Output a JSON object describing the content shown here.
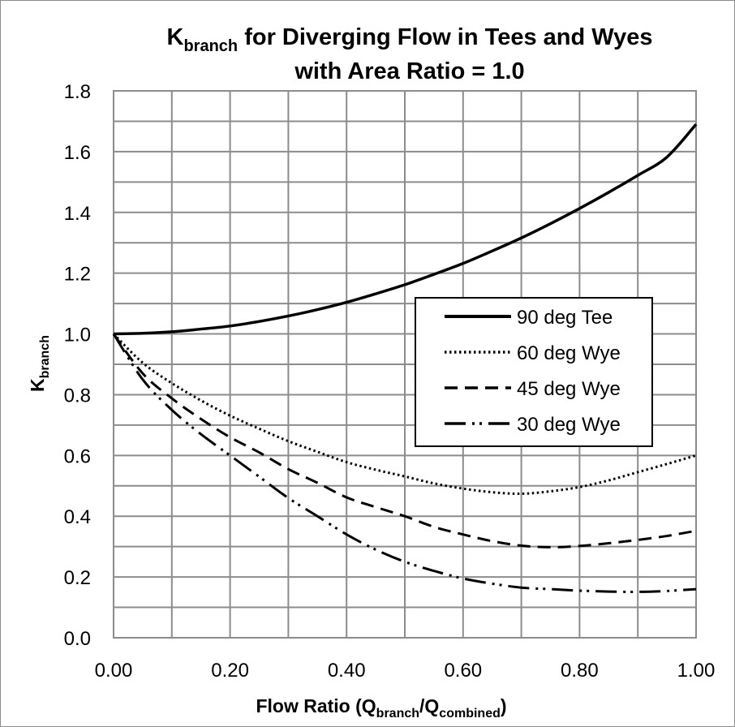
{
  "chart_data": {
    "type": "line",
    "title": {
      "line1_main": "K",
      "line1_sub": "branch",
      "line1_rest": " for Diverging Flow in Tees and Wyes",
      "line2": "with Area Ratio = 1.0"
    },
    "xlabel": {
      "pre": "Flow Ratio (Q",
      "sub1": "branch",
      "mid": "/Q",
      "sub2": "combined",
      "post": ")"
    },
    "ylabel": {
      "main": "K",
      "sub": "branch"
    },
    "xlim": [
      0,
      1
    ],
    "ylim": [
      0,
      1.8
    ],
    "x_ticks": [
      "0.00",
      "0.20",
      "0.40",
      "0.60",
      "0.80",
      "1.00"
    ],
    "y_ticks": [
      "0.0",
      "0.2",
      "0.4",
      "0.6",
      "0.8",
      "1.0",
      "1.2",
      "1.4",
      "1.6",
      "1.8"
    ],
    "grid": true,
    "grid_minor_x": 0.1,
    "grid_minor_y": 0.1,
    "legend_position": "right-middle",
    "x": [
      0.0,
      0.05,
      0.1,
      0.15,
      0.2,
      0.25,
      0.3,
      0.35,
      0.4,
      0.45,
      0.5,
      0.55,
      0.6,
      0.65,
      0.7,
      0.75,
      0.8,
      0.85,
      0.9,
      0.95,
      1.0
    ],
    "series": [
      {
        "name": "90 deg Tee",
        "dash": "solid",
        "values": [
          1.0,
          1.002,
          1.007,
          1.016,
          1.026,
          1.041,
          1.059,
          1.08,
          1.104,
          1.132,
          1.162,
          1.196,
          1.232,
          1.273,
          1.316,
          1.363,
          1.413,
          1.466,
          1.522,
          1.582,
          1.69
        ]
      },
      {
        "name": "60 deg Wye",
        "dash": "dotted",
        "values": [
          1.0,
          0.905,
          0.838,
          0.781,
          0.731,
          0.688,
          0.647,
          0.612,
          0.578,
          0.553,
          0.531,
          0.508,
          0.491,
          0.479,
          0.474,
          0.482,
          0.496,
          0.518,
          0.545,
          0.572,
          0.6
        ]
      },
      {
        "name": "45 deg Wye",
        "dash": "dashed",
        "values": [
          1.0,
          0.87,
          0.788,
          0.72,
          0.66,
          0.61,
          0.555,
          0.51,
          0.462,
          0.43,
          0.4,
          0.365,
          0.34,
          0.318,
          0.303,
          0.298,
          0.302,
          0.311,
          0.322,
          0.335,
          0.352
        ]
      },
      {
        "name": "30 deg Wye",
        "dash": "dashdotdot",
        "values": [
          1.0,
          0.85,
          0.75,
          0.67,
          0.6,
          0.53,
          0.46,
          0.4,
          0.34,
          0.29,
          0.25,
          0.22,
          0.195,
          0.178,
          0.165,
          0.16,
          0.155,
          0.152,
          0.151,
          0.154,
          0.16
        ]
      }
    ]
  }
}
